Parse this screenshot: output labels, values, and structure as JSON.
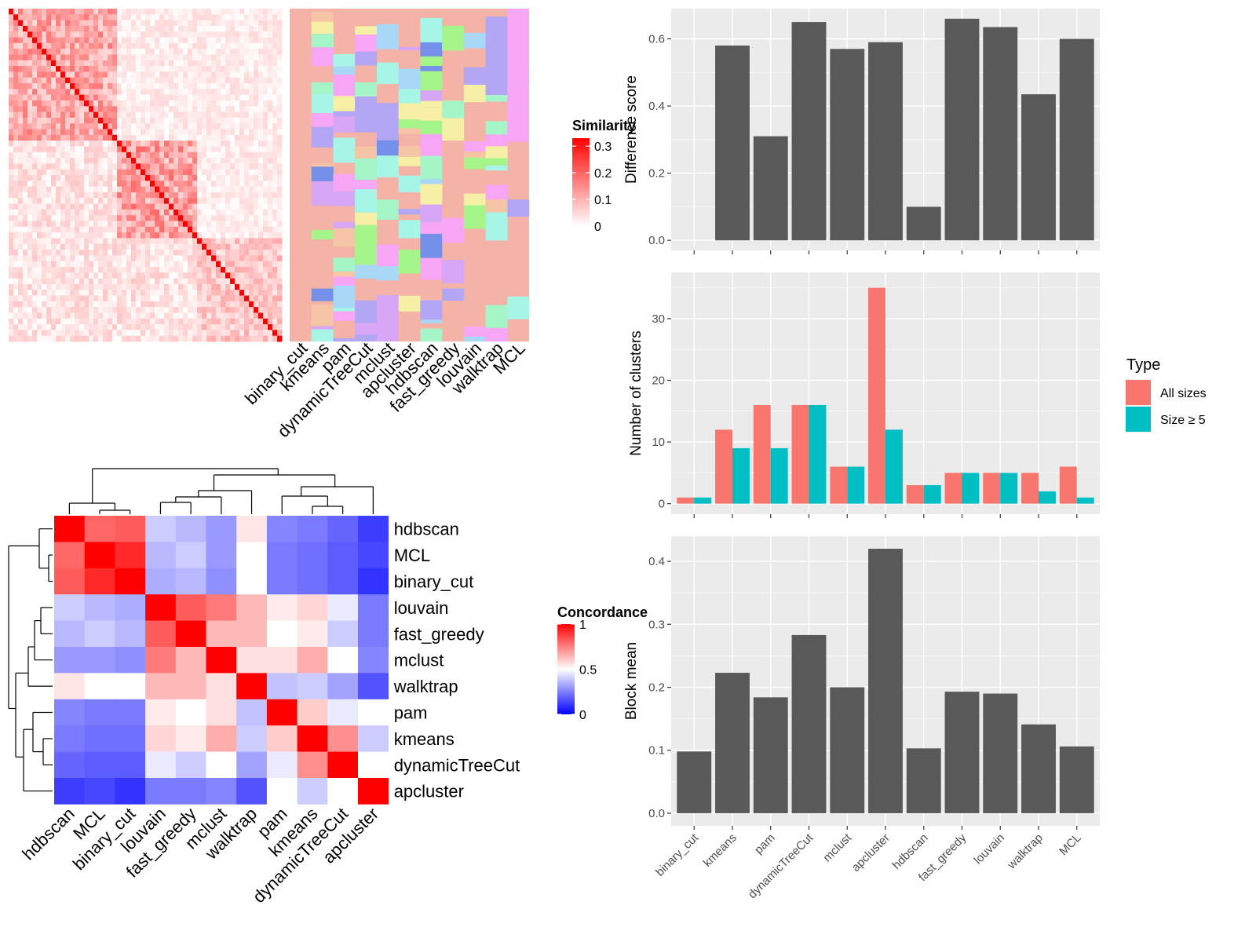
{
  "chart_data": [
    {
      "type": "heatmap",
      "name": "cell-similarity-heatmap",
      "legend": {
        "title": "Similarity",
        "breaks": [
          "0.3",
          "0.2",
          "0.1",
          "0"
        ],
        "range": [
          0,
          0.33
        ],
        "colors": [
          "#ffffff",
          "#ff0000"
        ]
      },
      "annotation_columns": [
        "binary_cut",
        "kmeans",
        "pam",
        "dynamicTreeCut",
        "mclust",
        "apcluster",
        "hdbscan",
        "fast_greedy",
        "louvain",
        "walktrap",
        "MCL"
      ]
    },
    {
      "type": "heatmap",
      "name": "concordance-heatmap",
      "legend": {
        "title": "Concordance",
        "breaks": [
          "1",
          "0.5",
          "0"
        ],
        "range": [
          0,
          1
        ],
        "colors": [
          "#0000ff",
          "#ffffff",
          "#ff0000"
        ]
      },
      "rows": [
        "hdbscan",
        "MCL",
        "binary_cut",
        "louvain",
        "fast_greedy",
        "mclust",
        "walktrap",
        "pam",
        "kmeans",
        "dynamicTreeCut",
        "apcluster"
      ],
      "columns": [
        "hdbscan",
        "MCL",
        "binary_cut",
        "louvain",
        "fast_greedy",
        "mclust",
        "walktrap",
        "pam",
        "kmeans",
        "dynamicTreeCut",
        "apcluster"
      ],
      "values": [
        [
          1.0,
          0.8,
          0.82,
          0.4,
          0.36,
          0.3,
          0.55,
          0.26,
          0.24,
          0.2,
          0.12
        ],
        [
          0.8,
          1.0,
          0.92,
          0.36,
          0.4,
          0.3,
          0.5,
          0.24,
          0.22,
          0.18,
          0.14
        ],
        [
          0.82,
          0.92,
          1.0,
          0.34,
          0.36,
          0.28,
          0.5,
          0.24,
          0.22,
          0.18,
          0.1
        ],
        [
          0.4,
          0.36,
          0.34,
          1.0,
          0.82,
          0.76,
          0.64,
          0.54,
          0.58,
          0.46,
          0.24
        ],
        [
          0.36,
          0.4,
          0.36,
          0.82,
          1.0,
          0.64,
          0.64,
          0.5,
          0.54,
          0.4,
          0.24
        ],
        [
          0.3,
          0.3,
          0.28,
          0.76,
          0.64,
          1.0,
          0.56,
          0.56,
          0.66,
          0.5,
          0.26
        ],
        [
          0.55,
          0.5,
          0.5,
          0.64,
          0.64,
          0.56,
          1.0,
          0.38,
          0.4,
          0.32,
          0.16
        ],
        [
          0.26,
          0.24,
          0.24,
          0.54,
          0.5,
          0.56,
          0.38,
          1.0,
          0.6,
          0.46,
          0.5
        ],
        [
          0.24,
          0.22,
          0.22,
          0.58,
          0.54,
          0.66,
          0.4,
          0.6,
          1.0,
          0.72,
          0.4
        ],
        [
          0.2,
          0.18,
          0.18,
          0.46,
          0.4,
          0.5,
          0.32,
          0.46,
          0.72,
          1.0,
          0.5
        ],
        [
          0.12,
          0.14,
          0.1,
          0.24,
          0.24,
          0.26,
          0.16,
          0.5,
          0.4,
          0.5,
          1.0
        ]
      ]
    },
    {
      "type": "bar",
      "name": "difference-score",
      "categories": [
        "binary_cut",
        "kmeans",
        "pam",
        "dynamicTreeCut",
        "mclust",
        "apcluster",
        "hdbscan",
        "fast_greedy",
        "louvain",
        "walktrap",
        "MCL"
      ],
      "values": [
        0.0,
        0.58,
        0.31,
        0.65,
        0.57,
        0.59,
        0.1,
        0.66,
        0.635,
        0.435,
        0.6
      ],
      "ylabel": "Difference score",
      "ylim": [
        -0.03,
        0.69
      ],
      "yticks": [
        "0.0",
        "0.2",
        "0.4",
        "0.6"
      ],
      "color": "#595959"
    },
    {
      "type": "bar",
      "name": "number-of-clusters",
      "categories": [
        "binary_cut",
        "kmeans",
        "pam",
        "dynamicTreeCut",
        "mclust",
        "apcluster",
        "hdbscan",
        "fast_greedy",
        "louvain",
        "walktrap",
        "MCL"
      ],
      "series": [
        {
          "name": "All sizes",
          "color": "#F8766D",
          "values": [
            1,
            12,
            16,
            16,
            6,
            35,
            3,
            5,
            5,
            5,
            6
          ]
        },
        {
          "name": "Size ≥ 5",
          "color": "#00BFC4",
          "values": [
            1,
            9,
            9,
            16,
            6,
            12,
            3,
            5,
            5,
            2,
            1
          ]
        }
      ],
      "ylabel": "Number of clusters",
      "ylim": [
        -1.7,
        37.5
      ],
      "yticks": [
        "0",
        "10",
        "20",
        "30"
      ],
      "legend": {
        "title": "Type",
        "position": "right"
      }
    },
    {
      "type": "bar",
      "name": "block-mean",
      "categories": [
        "binary_cut",
        "kmeans",
        "pam",
        "dynamicTreeCut",
        "mclust",
        "apcluster",
        "hdbscan",
        "fast_greedy",
        "louvain",
        "walktrap",
        "MCL"
      ],
      "values": [
        0.098,
        0.223,
        0.184,
        0.283,
        0.2,
        0.42,
        0.103,
        0.193,
        0.19,
        0.141,
        0.106
      ],
      "ylabel": "Block mean",
      "ylim": [
        -0.02,
        0.44
      ],
      "yticks": [
        "0.0",
        "0.1",
        "0.2",
        "0.3",
        "0.4"
      ],
      "color": "#595959"
    }
  ]
}
